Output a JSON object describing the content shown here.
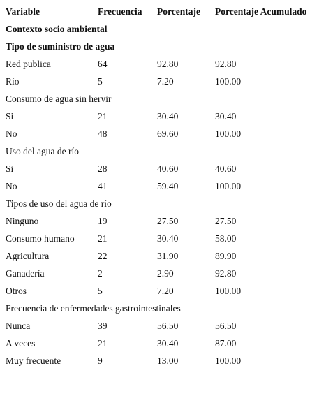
{
  "table": {
    "columns": [
      "Variable",
      "Frecuencia",
      "Porcentaje",
      "Porcentaje Acumulado"
    ],
    "rows": [
      [
        "Contexto socio ambiental"
      ],
      [
        "Tipo de suministro de agua"
      ],
      [
        "Red publica",
        "64",
        "92.80",
        "92.80"
      ],
      [
        "Río",
        "5",
        "7.20",
        "100.00"
      ],
      [
        "Consumo de agua sin hervir"
      ],
      [
        "Si",
        "21",
        "30.40",
        "30.40"
      ],
      [
        "No",
        "48",
        "69.60",
        "100.00"
      ],
      [
        "Uso del agua de río"
      ],
      [
        "Si",
        "28",
        "40.60",
        "40.60"
      ],
      [
        "No",
        "41",
        "59.40",
        "100.00"
      ],
      [
        "Tipos de uso del agua de río"
      ],
      [
        "Ninguno",
        "19",
        "27.50",
        "27.50"
      ],
      [
        "Consumo humano",
        "21",
        "30.40",
        "58.00"
      ],
      [
        "Agricultura",
        "22",
        "31.90",
        "89.90"
      ],
      [
        "Ganadería",
        "2",
        "2.90",
        "92.80"
      ],
      [
        "Otros",
        "5",
        "7.20",
        "100.00"
      ],
      [
        "Frecuencia de enfermedades gastrointestinales"
      ],
      [
        "Nunca",
        "39",
        "56.50",
        "56.50"
      ],
      [
        "A veces",
        "21",
        "30.40",
        "87.00"
      ],
      [
        "Muy frecuente",
        "9",
        "13.00",
        "100.00"
      ]
    ]
  }
}
